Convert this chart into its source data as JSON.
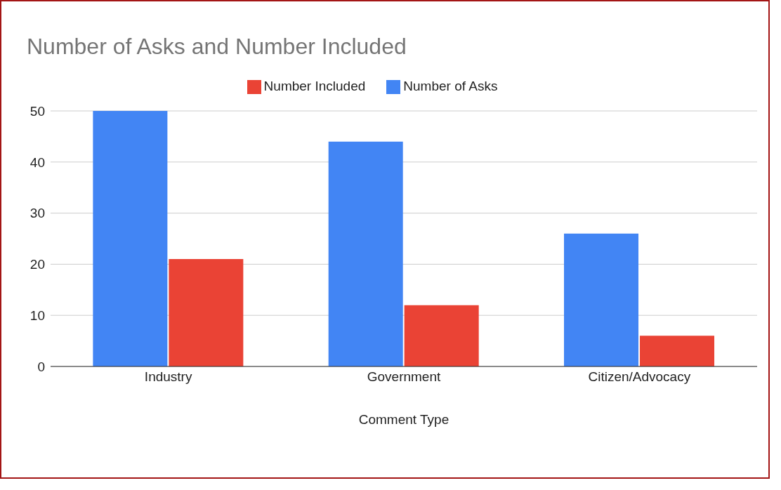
{
  "chart_data": {
    "type": "bar",
    "title": "Number of Asks and Number Included",
    "xlabel": "Comment Type",
    "categories": [
      "Industry",
      "Government",
      "Citizen/Advocacy"
    ],
    "series": [
      {
        "name": "Number of Asks",
        "color": "#4285f4",
        "values": [
          50,
          44,
          26
        ]
      },
      {
        "name": "Number Included",
        "color": "#ea4335",
        "values": [
          21,
          12,
          6
        ]
      }
    ],
    "ylim": [
      0,
      50
    ],
    "yticks": [
      0,
      10,
      20,
      30,
      40,
      50
    ],
    "grid": "y",
    "legend": "top"
  }
}
